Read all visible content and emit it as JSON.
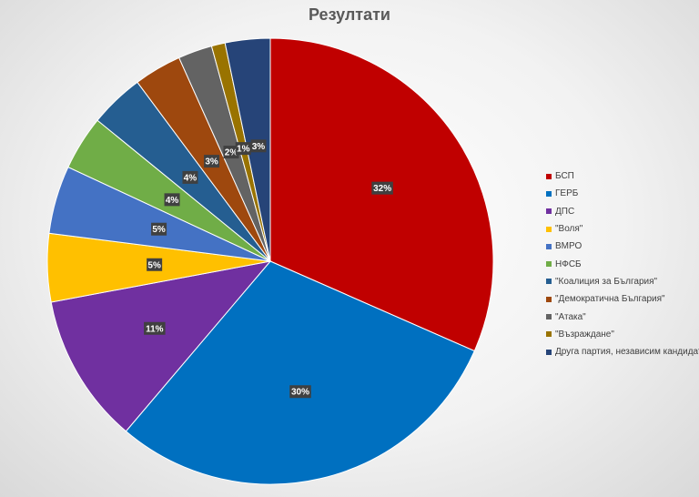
{
  "chart_data": {
    "type": "pie",
    "title": "Резултати",
    "legend_position": "right",
    "slices": [
      {
        "name": "БСП",
        "value": 32,
        "label": "32%",
        "color": "#c00000"
      },
      {
        "name": "ГЕРБ",
        "value": 30,
        "label": "30%",
        "color": "#0070c0"
      },
      {
        "name": "ДПС",
        "value": 11,
        "label": "11%",
        "color": "#7030a0"
      },
      {
        "name": "\"Воля\"",
        "value": 5,
        "label": "5%",
        "color": "#ffc000"
      },
      {
        "name": "ВМРО",
        "value": 5,
        "label": "5%",
        "color": "#4472c4"
      },
      {
        "name": "НФСБ",
        "value": 4,
        "label": "4%",
        "color": "#70ad47"
      },
      {
        "name": "\"Коалиция за България\"",
        "value": 4,
        "label": "4%",
        "color": "#255e91"
      },
      {
        "name": "\"Демократична България\"",
        "value": 3.5,
        "label": "3%",
        "color": "#9e480e"
      },
      {
        "name": "\"Атака\"",
        "value": 2.5,
        "label": "2%",
        "color": "#636363"
      },
      {
        "name": "\"Възраждане\"",
        "value": 1,
        "label": "1%",
        "color": "#997300"
      },
      {
        "name": "Друга партия, независим кандидат",
        "value": 3.3,
        "label": "3%",
        "color": "#264478"
      }
    ]
  }
}
